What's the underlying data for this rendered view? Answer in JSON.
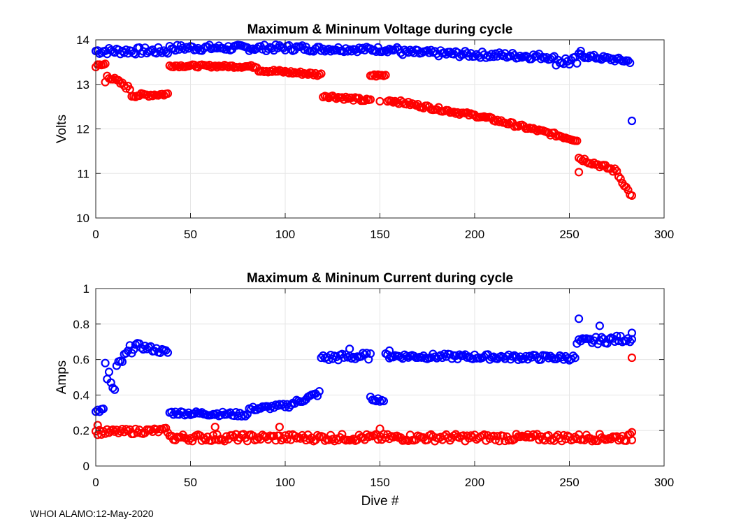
{
  "footer": "WHOI ALAMO:12-May-2020",
  "colors": {
    "max": "#0000ff",
    "min": "#ff0000",
    "grid": "#e6e6e6",
    "axis": "#262626"
  },
  "chart_data": [
    {
      "type": "scatter",
      "title": "Maximum & Mininum Voltage during cycle",
      "xlabel": "",
      "ylabel": "Volts",
      "xlim": [
        0,
        300
      ],
      "ylim": [
        10,
        14
      ],
      "xticks": [
        0,
        50,
        100,
        150,
        200,
        250,
        300
      ],
      "yticks": [
        10,
        11,
        12,
        13,
        14
      ],
      "series": [
        {
          "name": "Maximum",
          "color": "#0000ff",
          "segments": [
            {
              "x0": 0,
              "x1": 38,
              "y0": 13.75,
              "y1": 13.75,
              "jitter": 0.08
            },
            {
              "x0": 39,
              "x1": 110,
              "y0": 13.82,
              "y1": 13.82,
              "jitter": 0.07
            },
            {
              "x0": 111,
              "x1": 160,
              "y0": 13.8,
              "y1": 13.78,
              "jitter": 0.06
            },
            {
              "x0": 161,
              "x1": 240,
              "y0": 13.72,
              "y1": 13.62,
              "jitter": 0.07
            },
            {
              "x0": 241,
              "x1": 254,
              "y0": 13.55,
              "y1": 13.5,
              "jitter": 0.12
            },
            {
              "x0": 255,
              "x1": 282,
              "y0": 13.65,
              "y1": 13.52,
              "jitter": 0.05
            }
          ],
          "points": [
            {
              "x": 283,
              "y": 12.18
            },
            {
              "x": 256,
              "y": 13.75
            }
          ]
        },
        {
          "name": "Minimum",
          "color": "#ff0000",
          "segments": [
            {
              "x0": 0,
              "x1": 5,
              "y0": 13.4,
              "y1": 13.45,
              "jitter": 0.05
            },
            {
              "x0": 6,
              "x1": 18,
              "y0": 13.2,
              "y1": 12.9,
              "jitter": 0.05
            },
            {
              "x0": 19,
              "x1": 38,
              "y0": 12.75,
              "y1": 12.78,
              "jitter": 0.04
            },
            {
              "x0": 39,
              "x1": 85,
              "y0": 13.42,
              "y1": 13.4,
              "jitter": 0.03
            },
            {
              "x0": 86,
              "x1": 119,
              "y0": 13.32,
              "y1": 13.22,
              "jitter": 0.04
            },
            {
              "x0": 120,
              "x1": 145,
              "y0": 12.75,
              "y1": 12.63,
              "jitter": 0.04
            },
            {
              "x0": 145,
              "x1": 153,
              "y0": 13.2,
              "y1": 13.2,
              "jitter": 0.03
            },
            {
              "x0": 154,
              "x1": 200,
              "y0": 12.65,
              "y1": 12.3,
              "jitter": 0.04
            },
            {
              "x0": 201,
              "x1": 254,
              "y0": 12.3,
              "y1": 11.75,
              "jitter": 0.04
            },
            {
              "x0": 255,
              "x1": 275,
              "y0": 11.35,
              "y1": 11.05,
              "jitter": 0.05
            },
            {
              "x0": 276,
              "x1": 283,
              "y0": 10.95,
              "y1": 10.48,
              "jitter": 0.04
            }
          ],
          "points": [
            {
              "x": 5,
              "y": 13.05
            },
            {
              "x": 255,
              "y": 11.03
            },
            {
              "x": 150,
              "y": 12.62
            }
          ]
        }
      ]
    },
    {
      "type": "scatter",
      "title": "Maximum & Mininum Current during cycle",
      "xlabel": "Dive #",
      "ylabel": "Amps",
      "xlim": [
        0,
        300
      ],
      "ylim": [
        0,
        1
      ],
      "xticks": [
        0,
        50,
        100,
        150,
        200,
        250,
        300
      ],
      "yticks": [
        0,
        0.2,
        0.4,
        0.6,
        0.8,
        1
      ],
      "series": [
        {
          "name": "Maximum",
          "color": "#0000ff",
          "segments": [
            {
              "x0": 0,
              "x1": 4,
              "y0": 0.3,
              "y1": 0.32,
              "jitter": 0.015
            },
            {
              "x0": 11,
              "x1": 20,
              "y0": 0.55,
              "y1": 0.68,
              "jitter": 0.03
            },
            {
              "x0": 21,
              "x1": 38,
              "y0": 0.68,
              "y1": 0.64,
              "jitter": 0.015
            },
            {
              "x0": 39,
              "x1": 80,
              "y0": 0.3,
              "y1": 0.29,
              "jitter": 0.012
            },
            {
              "x0": 81,
              "x1": 100,
              "y0": 0.32,
              "y1": 0.34,
              "jitter": 0.012
            },
            {
              "x0": 101,
              "x1": 118,
              "y0": 0.34,
              "y1": 0.41,
              "jitter": 0.015
            },
            {
              "x0": 119,
              "x1": 145,
              "y0": 0.61,
              "y1": 0.62,
              "jitter": 0.02
            },
            {
              "x0": 145,
              "x1": 152,
              "y0": 0.38,
              "y1": 0.37,
              "jitter": 0.01
            },
            {
              "x0": 153,
              "x1": 253,
              "y0": 0.62,
              "y1": 0.61,
              "jitter": 0.015
            },
            {
              "x0": 255,
              "x1": 283,
              "y0": 0.7,
              "y1": 0.72,
              "jitter": 0.02
            }
          ],
          "points": [
            {
              "x": 5,
              "y": 0.58
            },
            {
              "x": 6,
              "y": 0.49
            },
            {
              "x": 7,
              "y": 0.53
            },
            {
              "x": 8,
              "y": 0.47
            },
            {
              "x": 9,
              "y": 0.44
            },
            {
              "x": 10,
              "y": 0.43
            },
            {
              "x": 255,
              "y": 0.83
            },
            {
              "x": 266,
              "y": 0.79
            },
            {
              "x": 283,
              "y": 0.75
            },
            {
              "x": 254,
              "y": 0.69
            },
            {
              "x": 155,
              "y": 0.65
            },
            {
              "x": 134,
              "y": 0.66
            }
          ]
        },
        {
          "name": "Minimum",
          "color": "#ff0000",
          "segments": [
            {
              "x0": 0,
              "x1": 38,
              "y0": 0.19,
              "y1": 0.2,
              "jitter": 0.015
            },
            {
              "x0": 39,
              "x1": 283,
              "y0": 0.16,
              "y1": 0.16,
              "jitter": 0.02
            }
          ],
          "points": [
            {
              "x": 1,
              "y": 0.23
            },
            {
              "x": 63,
              "y": 0.22
            },
            {
              "x": 97,
              "y": 0.22
            },
            {
              "x": 150,
              "y": 0.21
            },
            {
              "x": 283,
              "y": 0.61
            },
            {
              "x": 283,
              "y": 0.19
            }
          ]
        }
      ]
    }
  ]
}
